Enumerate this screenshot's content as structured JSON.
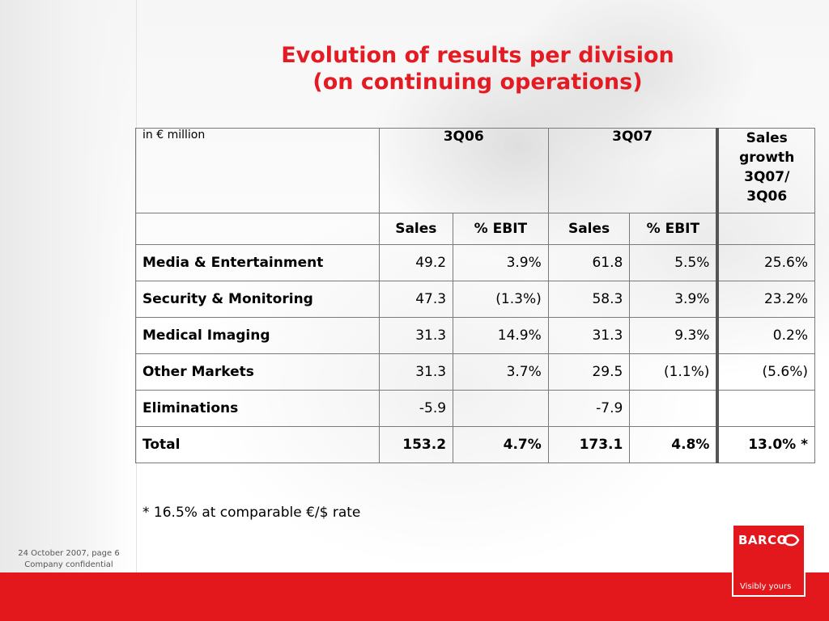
{
  "title": {
    "line1": "Evolution of results per division",
    "line2": "(on continuing operations)"
  },
  "table": {
    "unit_label": "in € million",
    "period1": "3Q06",
    "period2": "3Q07",
    "growth_header": [
      "Sales",
      "growth",
      "3Q07/",
      "3Q06"
    ],
    "subheaders": {
      "sales_06": "Sales",
      "ebit_06": "% EBIT",
      "sales_07": "Sales",
      "ebit_07": "% EBIT"
    },
    "rows": [
      {
        "division": "Media & Entertainment",
        "sales_06": "49.2",
        "ebit_06": "3.9%",
        "sales_07": "61.8",
        "ebit_07": "5.5%",
        "growth": "25.6%"
      },
      {
        "division": "Security & Monitoring",
        "sales_06": "47.3",
        "ebit_06": "(1.3%)",
        "sales_07": "58.3",
        "ebit_07": "3.9%",
        "growth": "23.2%"
      },
      {
        "division": "Medical Imaging",
        "sales_06": "31.3",
        "ebit_06": "14.9%",
        "sales_07": "31.3",
        "ebit_07": "9.3%",
        "growth": "0.2%"
      },
      {
        "division": "Other Markets",
        "sales_06": "31.3",
        "ebit_06": "3.7%",
        "sales_07": "29.5",
        "ebit_07": "(1.1%)",
        "growth": "(5.6%)"
      },
      {
        "division": "Eliminations",
        "sales_06": "-5.9",
        "ebit_06": "",
        "sales_07": "-7.9",
        "ebit_07": "",
        "growth": ""
      },
      {
        "division": "Total",
        "sales_06": "153.2",
        "ebit_06": "4.7%",
        "sales_07": "173.1",
        "ebit_07": "4.8%",
        "growth": "13.0% *"
      }
    ]
  },
  "footnote": "* 16.5% at comparable €/$ rate",
  "footer": {
    "date_page": "24 October 2007, page 6",
    "confidential": "Company confidential"
  },
  "logo": {
    "wordmark": "BARCO",
    "tagline": "Visibly yours"
  },
  "colors": {
    "accent_red": "#e3181d",
    "title_red": "#e31b23"
  }
}
